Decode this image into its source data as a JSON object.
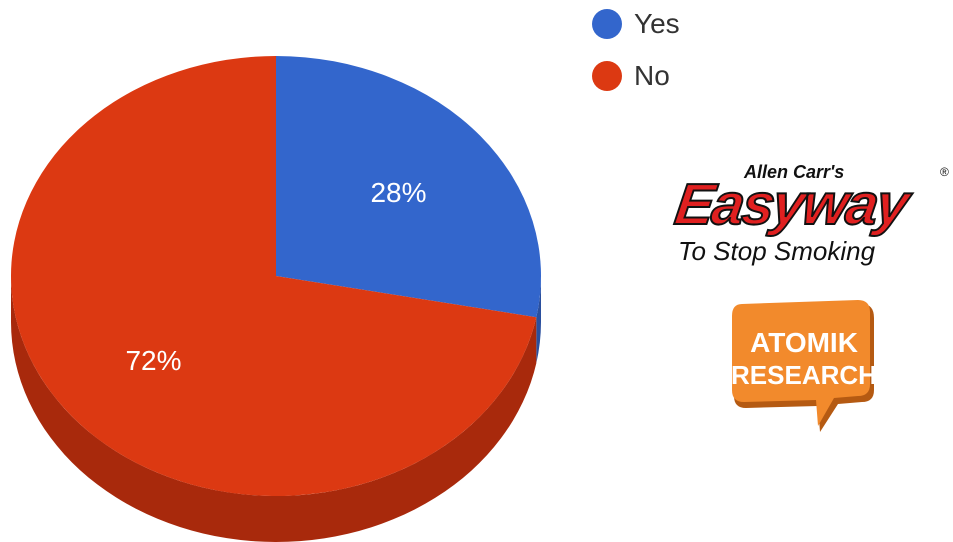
{
  "chart_data": {
    "type": "pie",
    "categories": [
      "Yes",
      "No"
    ],
    "values": [
      28,
      72
    ],
    "value_labels": [
      "28%",
      "72%"
    ],
    "colors": [
      "#3366cc",
      "#dc3912"
    ],
    "side_colors": [
      "#2a4f9e",
      "#a8290c"
    ],
    "legend_position": "top-right",
    "style": "3d"
  },
  "logos": {
    "easyway": {
      "top_text": "Allen Carr's",
      "main_text": "Easyway",
      "registered": "®",
      "sub_text": "To Stop Smoking"
    },
    "atomik": {
      "line1": "ATOMIK",
      "line2": "RESEARCH"
    }
  }
}
